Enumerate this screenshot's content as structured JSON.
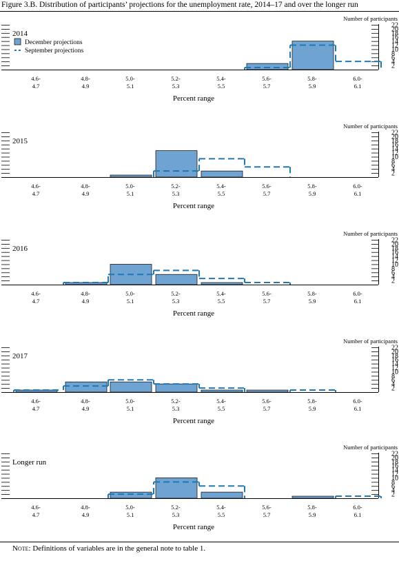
{
  "title": "Figure 3.B. Distribution of participants’ projections for the unemployment rate, 2014–17 and over the longer run",
  "note": {
    "label": "Note:",
    "text": " Definitions of variables are in the general note to table 1."
  },
  "colors": {
    "bar_fill": "#6fa3d2",
    "bar_stroke": "#1a1a1a",
    "september_line": "#1f78b4"
  },
  "chart_data": [
    {
      "type": "bar",
      "panel_label": "2014",
      "categories": [
        "4.6-4.7",
        "4.8-4.9",
        "5.0-5.1",
        "5.2-5.3",
        "5.4-5.5",
        "5.6-5.7",
        "5.8-5.9",
        "6.0-6.1"
      ],
      "x_tick_labels": [
        [
          "4.6-",
          "4.7"
        ],
        [
          "4.8-",
          "4.9"
        ],
        [
          "5.0-",
          "5.1"
        ],
        [
          "5.2-",
          "5.3"
        ],
        [
          "5.4-",
          "5.5"
        ],
        [
          "5.6-",
          "5.7"
        ],
        [
          "5.8-",
          "5.9"
        ],
        [
          "6.0-",
          "6.1"
        ]
      ],
      "series": [
        {
          "name": "December projections",
          "style": "bar",
          "values": [
            0,
            0,
            0,
            0,
            0,
            3,
            14,
            0
          ]
        },
        {
          "name": "September projections",
          "style": "dashed-step",
          "values": [
            0,
            0,
            0,
            0,
            0,
            1,
            12,
            4
          ]
        }
      ],
      "xlabel": "Percent range",
      "ylabel": "Number of participants",
      "ylim": [
        0,
        22
      ],
      "y_ticks": [
        2,
        4,
        6,
        8,
        10,
        12,
        14,
        16,
        18,
        20,
        22
      ],
      "legend": "top-left"
    },
    {
      "type": "bar",
      "panel_label": "2015",
      "categories": [
        "4.6-4.7",
        "4.8-4.9",
        "5.0-5.1",
        "5.2-5.3",
        "5.4-5.5",
        "5.6-5.7",
        "5.8-5.9",
        "6.0-6.1"
      ],
      "x_tick_labels": [
        [
          "4.6-",
          "4.7"
        ],
        [
          "4.8-",
          "4.9"
        ],
        [
          "5.0-",
          "5.1"
        ],
        [
          "5.2-",
          "5.3"
        ],
        [
          "5.4-",
          "5.5"
        ],
        [
          "5.6-",
          "5.7"
        ],
        [
          "5.8-",
          "5.9"
        ],
        [
          "6.0-",
          "6.1"
        ]
      ],
      "series": [
        {
          "style": "bar",
          "values": [
            0,
            0,
            1,
            13,
            3,
            0,
            0,
            0
          ]
        },
        {
          "style": "dashed-step",
          "values": [
            0,
            0,
            0,
            3,
            9,
            5,
            0,
            0
          ]
        }
      ],
      "xlabel": "Percent range",
      "ylabel": "Number of participants",
      "ylim": [
        0,
        22
      ],
      "y_ticks": [
        2,
        4,
        6,
        8,
        10,
        12,
        14,
        16,
        18,
        20,
        22
      ]
    },
    {
      "type": "bar",
      "panel_label": "2016",
      "categories": [
        "4.6-4.7",
        "4.8-4.9",
        "5.0-5.1",
        "5.2-5.3",
        "5.4-5.5",
        "5.6-5.7",
        "5.8-5.9",
        "6.0-6.1"
      ],
      "x_tick_labels": [
        [
          "4.6-",
          "4.7"
        ],
        [
          "4.8-",
          "4.9"
        ],
        [
          "5.0-",
          "5.1"
        ],
        [
          "5.2-",
          "5.3"
        ],
        [
          "5.4-",
          "5.5"
        ],
        [
          "5.6-",
          "5.7"
        ],
        [
          "5.8-",
          "5.9"
        ],
        [
          "6.0-",
          "6.1"
        ]
      ],
      "series": [
        {
          "style": "bar",
          "values": [
            0,
            1,
            10,
            5,
            1,
            0,
            0,
            0
          ]
        },
        {
          "style": "dashed-step",
          "values": [
            0,
            1,
            5,
            7,
            3,
            1,
            0,
            0
          ]
        }
      ],
      "xlabel": "Percent range",
      "ylabel": "Number of participants",
      "ylim": [
        0,
        22
      ],
      "y_ticks": [
        2,
        4,
        6,
        8,
        10,
        12,
        14,
        16,
        18,
        20,
        22
      ]
    },
    {
      "type": "bar",
      "panel_label": "2017",
      "categories": [
        "4.6-4.7",
        "4.8-4.9",
        "5.0-5.1",
        "5.2-5.3",
        "5.4-5.5",
        "5.6-5.7",
        "5.8-5.9",
        "6.0-6.1"
      ],
      "x_tick_labels": [
        [
          "4.6-",
          "4.7"
        ],
        [
          "4.8-",
          "4.9"
        ],
        [
          "5.0-",
          "5.1"
        ],
        [
          "5.2-",
          "5.3"
        ],
        [
          "5.4-",
          "5.5"
        ],
        [
          "5.6-",
          "5.7"
        ],
        [
          "5.8-",
          "5.9"
        ],
        [
          "6.0-",
          "6.1"
        ]
      ],
      "series": [
        {
          "style": "bar",
          "values": [
            1,
            5,
            5,
            4,
            1,
            1,
            0,
            0
          ]
        },
        {
          "style": "dashed-step",
          "values": [
            1,
            3,
            6,
            4,
            2,
            0,
            1,
            0
          ]
        }
      ],
      "xlabel": "Percent range",
      "ylabel": "Number of participants",
      "ylim": [
        0,
        22
      ],
      "y_ticks": [
        2,
        4,
        6,
        8,
        10,
        12,
        14,
        16,
        18,
        20,
        22
      ]
    },
    {
      "type": "bar",
      "panel_label": "Longer run",
      "categories": [
        "4.6-4.7",
        "4.8-4.9",
        "5.0-5.1",
        "5.2-5.3",
        "5.4-5.5",
        "5.6-5.7",
        "5.8-5.9",
        "6.0-6.1"
      ],
      "x_tick_labels": [
        [
          "4.6-",
          "4.7"
        ],
        [
          "4.8-",
          "4.9"
        ],
        [
          "5.0-",
          "5.1"
        ],
        [
          "5.2-",
          "5.3"
        ],
        [
          "5.4-",
          "5.5"
        ],
        [
          "5.6-",
          "5.7"
        ],
        [
          "5.8-",
          "5.9"
        ],
        [
          "6.0-",
          "6.1"
        ]
      ],
      "series": [
        {
          "style": "bar",
          "values": [
            0,
            0,
            3,
            10,
            3,
            0,
            1,
            0
          ]
        },
        {
          "style": "dashed-step",
          "values": [
            0,
            0,
            2,
            8,
            6,
            0,
            0,
            1
          ]
        }
      ],
      "xlabel": "Percent range",
      "ylabel": "Number of participants",
      "ylim": [
        0,
        22
      ],
      "y_ticks": [
        2,
        4,
        6,
        8,
        10,
        12,
        14,
        16,
        18,
        20,
        22
      ]
    }
  ]
}
